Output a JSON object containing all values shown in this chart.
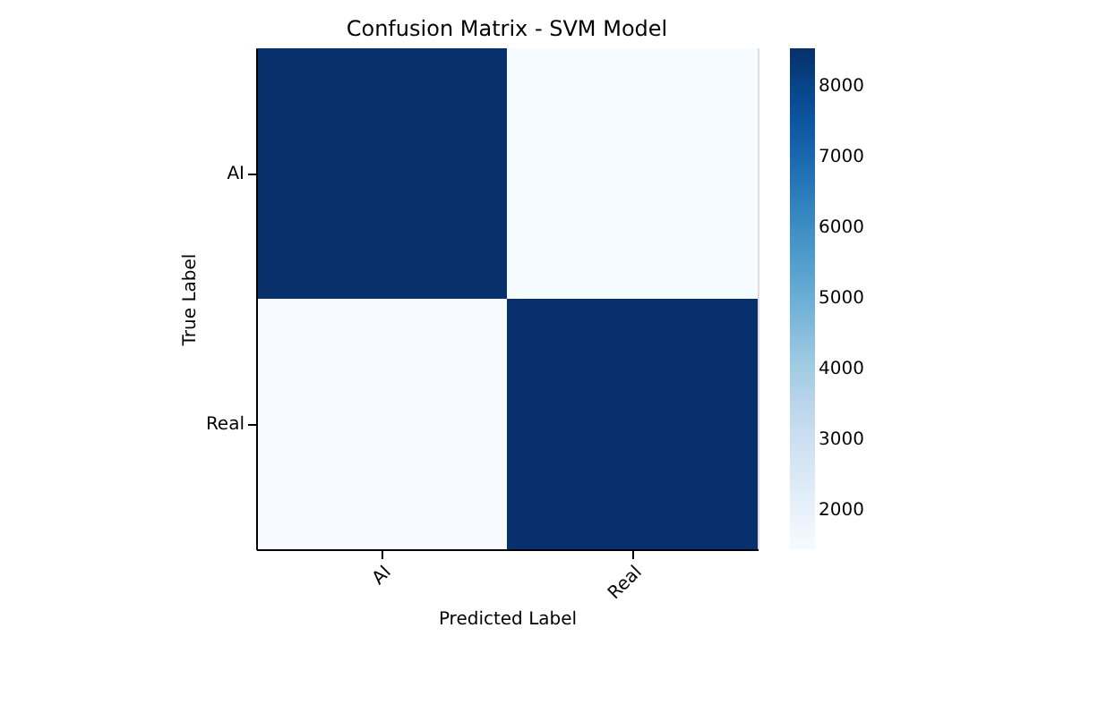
{
  "chart_data": {
    "type": "heatmap",
    "title": "Confusion Matrix - SVM Model",
    "xlabel": "Predicted Label",
    "ylabel": "True Label",
    "categories": [
      "AI",
      "Real"
    ],
    "y_categories": [
      "AI",
      "Real"
    ],
    "cells": [
      [
        8530,
        1460
      ],
      [
        1440,
        8520
      ]
    ],
    "clim": [
      1440,
      8530
    ],
    "cticks": [
      2000,
      3000,
      4000,
      5000,
      6000,
      7000,
      8000
    ],
    "grid": false
  }
}
